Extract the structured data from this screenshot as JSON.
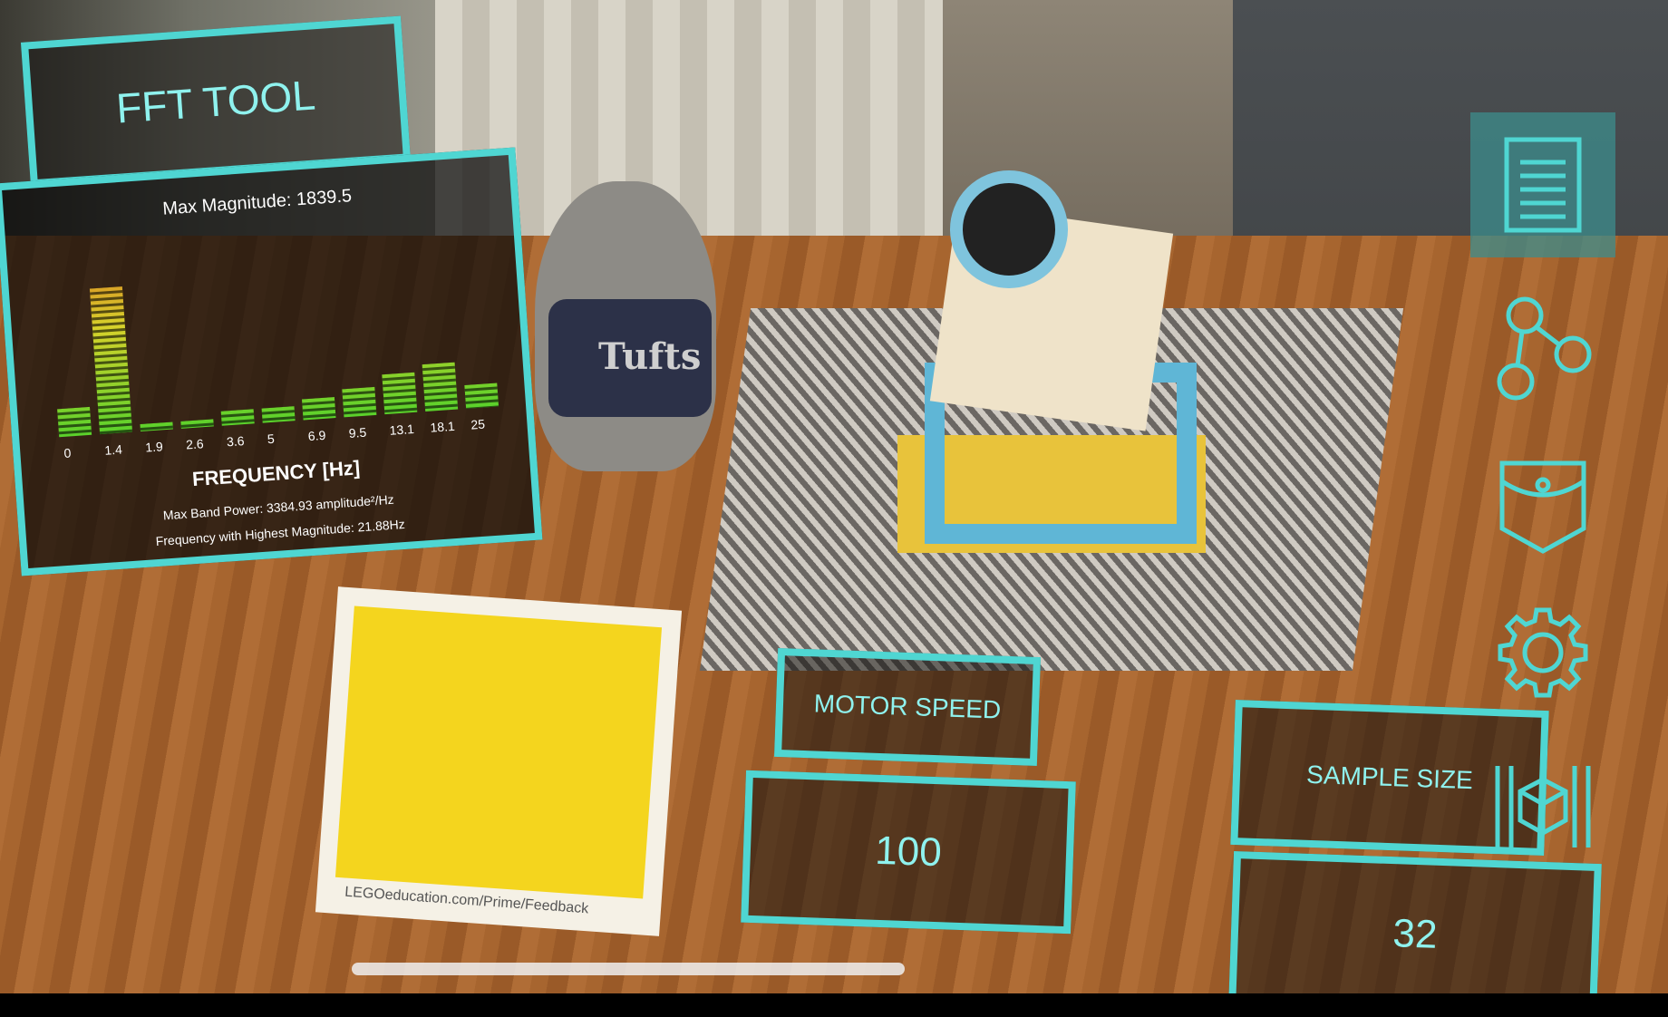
{
  "fft_panel": {
    "title": "FFT TOOL",
    "max_magnitude": "Max Magnitude: 1839.5",
    "x_labels": [
      "0",
      "1.4",
      "1.9",
      "2.6",
      "3.6",
      "5",
      "6.9",
      "9.5",
      "13.1",
      "18.1",
      "25"
    ],
    "bar_levels": [
      0.12,
      0.62,
      0.03,
      0.03,
      0.06,
      0.06,
      0.09,
      0.12,
      0.17,
      0.2,
      0.1
    ],
    "axis_label": "FREQUENCY [Hz]",
    "max_band_power": "Max Band Power: 3384.93 amplitude²/Hz",
    "freq_highest": "Frequency with Highest Magnitude: 21.88Hz"
  },
  "motor_speed": {
    "label": "MOTOR SPEED",
    "value": "100"
  },
  "sample_size": {
    "label": "SAMPLE SIZE",
    "value": "32"
  },
  "toolbar": {
    "icons": [
      "notes-icon",
      "graph-nodes-icon",
      "pocket-icon",
      "gear-icon",
      "cube-icon"
    ]
  },
  "scene": {
    "plush_shirt_text": "Tufts",
    "booklet_url": "LEGOeducation.com/Prime/Feedback"
  },
  "colors": {
    "accent": "#4fd6d2",
    "accent_text": "#8ff2ee"
  }
}
